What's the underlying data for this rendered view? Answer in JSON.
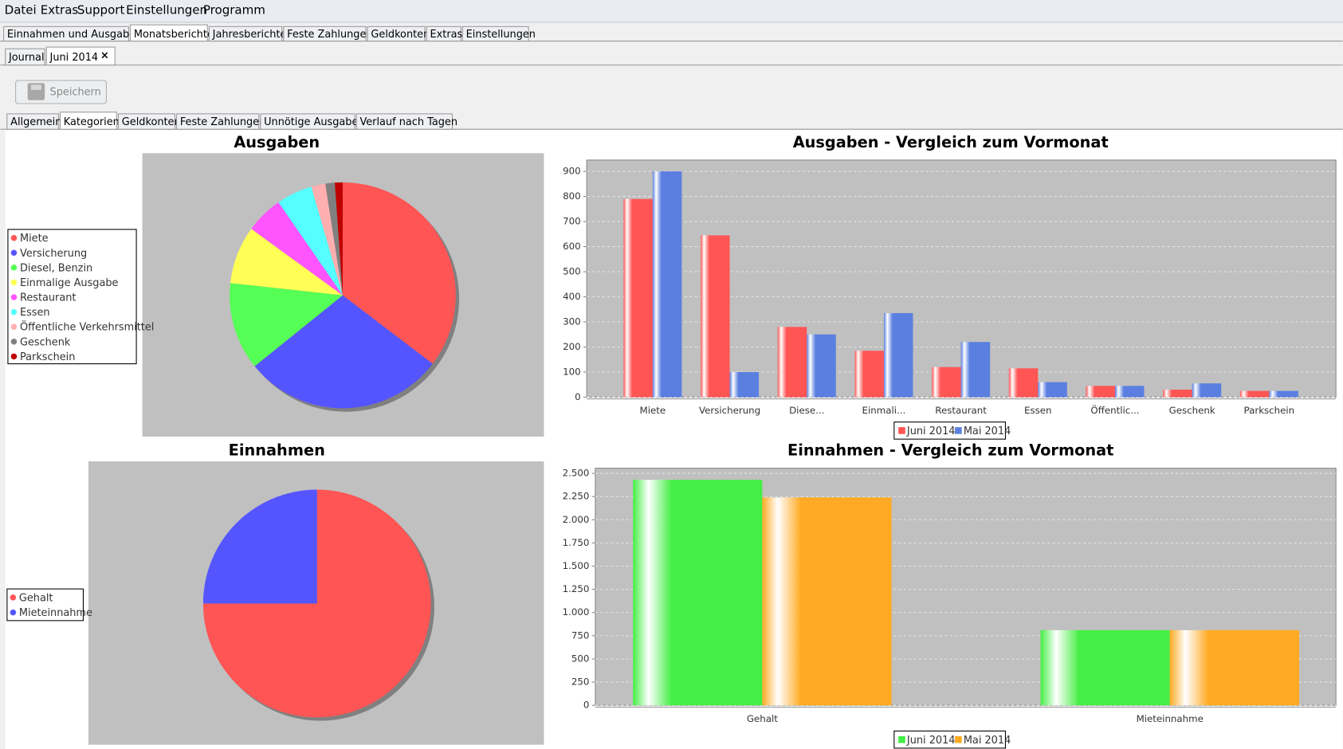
{
  "menu": [
    "Datei",
    "Extras",
    "Support",
    "Einstellungen",
    "Programm"
  ],
  "main_tabs": [
    "Einnahmen und Ausgaben",
    "Monatsberichte",
    "Jahresberichte",
    "Feste Zahlungen",
    "Geldkonten",
    "Extras",
    "Einstellungen"
  ],
  "main_tab_selected": 1,
  "sub_tabs": [
    "Journal",
    "Juni 2014"
  ],
  "sub_tab_selected": 1,
  "sub_tab_close": "×",
  "save_button": "Speichern",
  "report_tabs": [
    "Allgemein",
    "Kategorien",
    "Geldkonten",
    "Feste Zahlungen",
    "Unnötige Ausgaben",
    "Verlauf nach Tagen"
  ],
  "report_tab_selected": 1,
  "chart_data": [
    {
      "type": "pie",
      "title": "Ausgaben",
      "categories": [
        "Miete",
        "Versicherung",
        "Diesel, Benzin",
        "Einmalige Ausgabe",
        "Restaurant",
        "Essen",
        "Öffentliche Verkehrsmittel",
        "Geschenk",
        "Parkschein"
      ],
      "values": [
        790,
        645,
        280,
        185,
        120,
        115,
        45,
        30,
        25
      ],
      "colors": [
        "#ff5555",
        "#5555ff",
        "#55ff55",
        "#ffff55",
        "#ff55ff",
        "#55ffff",
        "#ffafaf",
        "#808080",
        "#c00000"
      ],
      "legend": "left"
    },
    {
      "type": "bar",
      "title": "Ausgaben - Vergleich zum Vormonat",
      "categories": [
        "Miete",
        "Versicherung",
        "Diese...",
        "Einmali...",
        "Restaurant",
        "Essen",
        "Öffentlic...",
        "Geschenk",
        "Parkschein"
      ],
      "series": [
        {
          "name": "Juni 2014",
          "color": "#ff5555",
          "values": [
            790,
            645,
            280,
            185,
            120,
            115,
            45,
            30,
            25
          ]
        },
        {
          "name": "Mai 2014",
          "color": "#5b7fe0",
          "values": [
            900,
            100,
            250,
            335,
            220,
            60,
            45,
            55,
            25
          ]
        }
      ],
      "ylim": [
        0,
        945
      ],
      "yticks": [
        0,
        100,
        200,
        300,
        400,
        500,
        600,
        700,
        800,
        900
      ],
      "grid": true,
      "legend": "bottom"
    },
    {
      "type": "pie",
      "title": "Einnahmen",
      "categories": [
        "Gehalt",
        "Mieteinnahme"
      ],
      "values": [
        2430,
        810
      ],
      "colors": [
        "#ff5555",
        "#5555ff"
      ],
      "legend": "left"
    },
    {
      "type": "bar",
      "title": "Einnahmen - Vergleich zum Vormonat",
      "categories": [
        "Gehalt",
        "Mieteinnahme"
      ],
      "series": [
        {
          "name": "Juni 2014",
          "color": "#44ee44",
          "values": [
            2430,
            810
          ]
        },
        {
          "name": "Mai 2014",
          "color": "#ffaa22",
          "values": [
            2240,
            810
          ]
        }
      ],
      "ylim": [
        0,
        2555
      ],
      "yticks": [
        0,
        250,
        500,
        750,
        {
          "value": 1000,
          "label": "1.000"
        },
        {
          "value": 1250,
          "label": "1.250"
        },
        {
          "value": 1500,
          "label": "1.500"
        },
        {
          "value": 1750,
          "label": "1.750"
        },
        {
          "value": 2000,
          "label": "2.000"
        },
        {
          "value": 2250,
          "label": "2.250"
        },
        {
          "value": 2500,
          "label": "2.500"
        }
      ],
      "grid": true,
      "legend": "bottom"
    }
  ]
}
